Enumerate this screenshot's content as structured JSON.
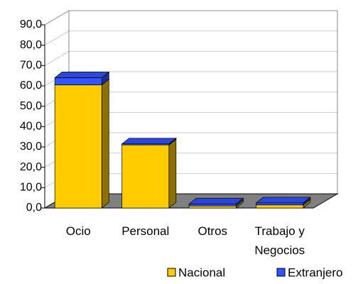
{
  "chart_data": {
    "type": "bar3d_stacked",
    "categories": [
      "Ocio",
      "Personal",
      "Otros",
      "Trabajo y Negocios"
    ],
    "series": [
      {
        "name": "Nacional",
        "color": "#FFCC00",
        "values": [
          60.5,
          31,
          1,
          1.5
        ]
      },
      {
        "name": "Extranjero",
        "color": "#3355FF",
        "values": [
          3.5,
          0.5,
          1,
          1
        ]
      }
    ],
    "ylim": [
      0,
      90
    ],
    "yticks": [
      {
        "value": 0,
        "label": "0,0"
      },
      {
        "value": 10,
        "label": "10,0"
      },
      {
        "value": 20,
        "label": "20,0"
      },
      {
        "value": 30,
        "label": "30,0"
      },
      {
        "value": 40,
        "label": "40,0"
      },
      {
        "value": 50,
        "label": "50,0"
      },
      {
        "value": 60,
        "label": "60,0"
      },
      {
        "value": 70,
        "label": "70,0"
      },
      {
        "value": 80,
        "label": "80,0"
      },
      {
        "value": 90,
        "label": "90,0"
      }
    ],
    "grid": true,
    "legend": "bottom"
  }
}
